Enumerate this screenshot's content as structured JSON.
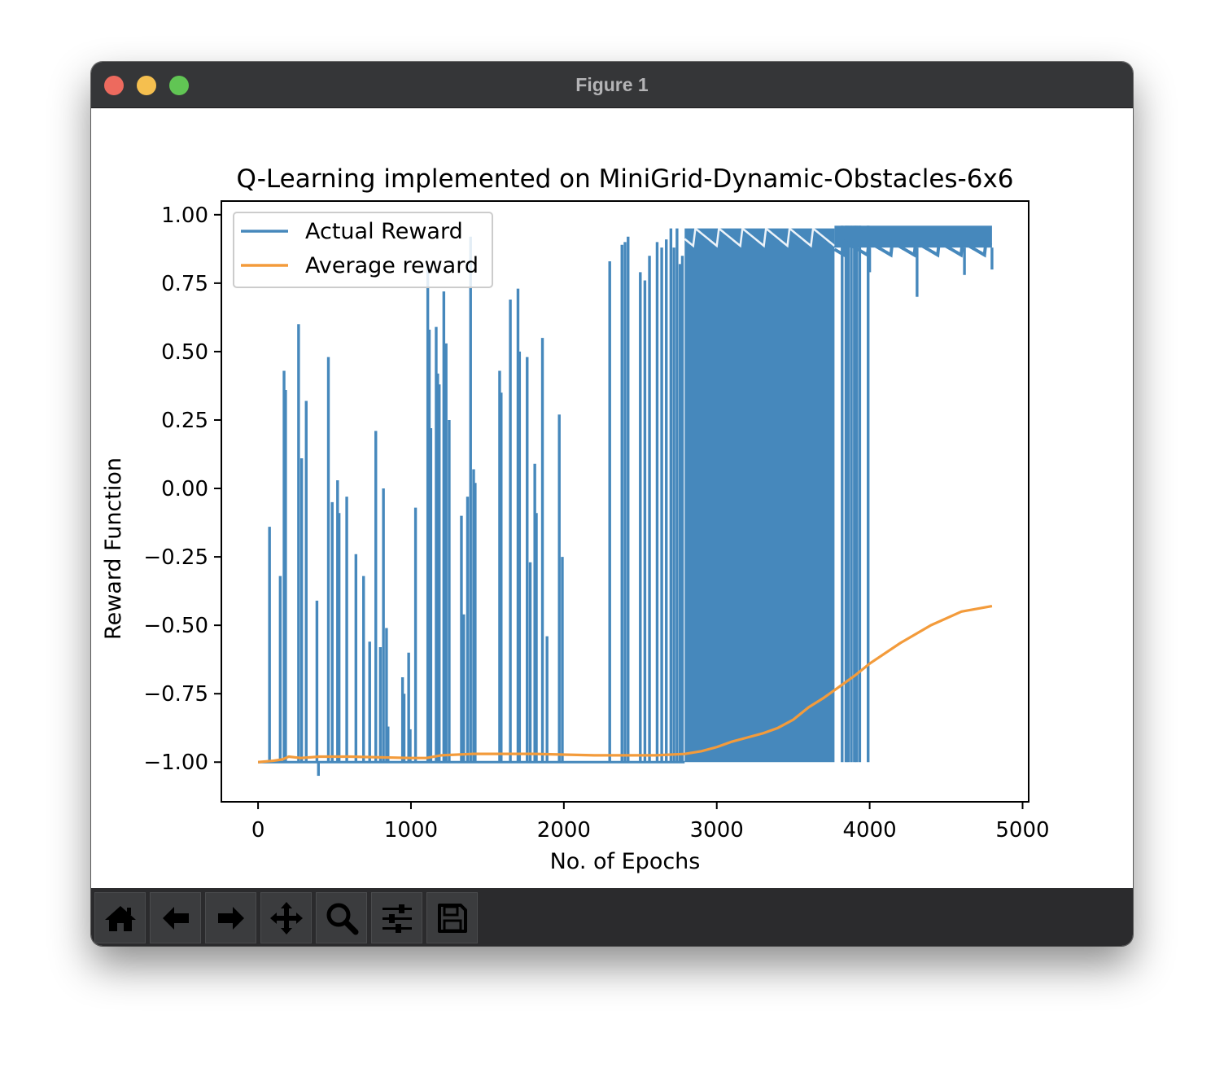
{
  "window": {
    "title": "Figure 1"
  },
  "toolbar": {
    "tools": [
      {
        "name": "home-icon",
        "label": "Home"
      },
      {
        "name": "back-icon",
        "label": "Back"
      },
      {
        "name": "forward-icon",
        "label": "Forward"
      },
      {
        "name": "pan-icon",
        "label": "Pan"
      },
      {
        "name": "zoom-icon",
        "label": "Zoom"
      },
      {
        "name": "configure-subplots-icon",
        "label": "Configure subplots"
      },
      {
        "name": "save-icon",
        "label": "Save"
      }
    ]
  },
  "chart_data": {
    "type": "line",
    "title": "Q-Learning implemented on MiniGrid-Dynamic-Obstacles-6x6",
    "xlabel": "No. of Epochs",
    "ylabel": "Reward Function",
    "xlim": [
      -240,
      5040
    ],
    "ylim": [
      -1.145,
      1.05
    ],
    "xticks": [
      0,
      1000,
      2000,
      3000,
      4000,
      5000
    ],
    "xtick_labels": [
      "0",
      "1000",
      "2000",
      "3000",
      "4000",
      "5000"
    ],
    "yticks": [
      1.0,
      0.75,
      0.5,
      0.25,
      0.0,
      -0.25,
      -0.5,
      -0.75,
      -1.0
    ],
    "ytick_labels": [
      "1.00",
      "0.75",
      "0.50",
      "0.25",
      "0.00",
      "−0.25",
      "−0.50",
      "−0.75",
      "−1.00"
    ],
    "grid": false,
    "legend_position": "top-left",
    "series": [
      {
        "name": "Actual Reward",
        "color": "#4688bc",
        "spikes": [
          [
            75,
            -0.14
          ],
          [
            145,
            -0.32
          ],
          [
            170,
            0.43
          ],
          [
            180,
            0.36
          ],
          [
            265,
            0.6
          ],
          [
            285,
            0.11
          ],
          [
            315,
            0.32
          ],
          [
            385,
            -0.41
          ],
          [
            395,
            -1.05
          ],
          [
            460,
            0.48
          ],
          [
            485,
            -0.05
          ],
          [
            520,
            0.03
          ],
          [
            530,
            -0.09
          ],
          [
            580,
            -0.03
          ],
          [
            640,
            -0.24
          ],
          [
            690,
            -0.32
          ],
          [
            730,
            -0.56
          ],
          [
            770,
            0.21
          ],
          [
            800,
            -0.58
          ],
          [
            820,
            0.0
          ],
          [
            840,
            -0.51
          ],
          [
            850,
            -0.87
          ],
          [
            945,
            -0.69
          ],
          [
            955,
            -0.75
          ],
          [
            985,
            -0.6
          ],
          [
            995,
            -0.88
          ],
          [
            1030,
            -0.07
          ],
          [
            1110,
            0.82
          ],
          [
            1120,
            0.58
          ],
          [
            1130,
            0.22
          ],
          [
            1165,
            0.59
          ],
          [
            1175,
            0.42
          ],
          [
            1185,
            0.38
          ],
          [
            1215,
            0.72
          ],
          [
            1230,
            0.53
          ],
          [
            1250,
            0.25
          ],
          [
            1330,
            -0.1
          ],
          [
            1345,
            -0.46
          ],
          [
            1370,
            -0.03
          ],
          [
            1390,
            0.92
          ],
          [
            1410,
            0.07
          ],
          [
            1420,
            0.02
          ],
          [
            1580,
            0.43
          ],
          [
            1590,
            0.35
          ],
          [
            1650,
            0.69
          ],
          [
            1700,
            0.73
          ],
          [
            1710,
            0.5
          ],
          [
            1760,
            0.48
          ],
          [
            1780,
            -0.27
          ],
          [
            1810,
            0.09
          ],
          [
            1820,
            -0.09
          ],
          [
            1860,
            0.55
          ],
          [
            1890,
            -0.54
          ],
          [
            1970,
            0.27
          ],
          [
            1990,
            -0.25
          ],
          [
            2300,
            0.83
          ],
          [
            2380,
            0.89
          ],
          [
            2400,
            0.9
          ],
          [
            2420,
            0.92
          ],
          [
            2500,
            0.79
          ],
          [
            2530,
            0.76
          ],
          [
            2560,
            0.85
          ],
          [
            2610,
            0.9
          ],
          [
            2640,
            0.88
          ],
          [
            2670,
            0.91
          ],
          [
            2700,
            0.95
          ],
          [
            2720,
            0.88
          ],
          [
            2740,
            0.95
          ],
          [
            2760,
            0.82
          ],
          [
            2775,
            0.85
          ]
        ],
        "dense_band": {
          "x_start": 2790,
          "x_end": 3770,
          "top": 0.95,
          "bottom": -1.0
        },
        "late_drops": [
          3820,
          3845,
          3860,
          3880,
          3900,
          3915,
          3935,
          3990
        ],
        "converged_region": {
          "x_start": 3770,
          "x_end": 4800,
          "top": 0.96,
          "typical_low": 0.84,
          "min_dips": [
            [
              4000,
              0.79
            ],
            [
              4310,
              0.7
            ],
            [
              4620,
              0.78
            ],
            [
              4800,
              0.8
            ]
          ]
        },
        "baseline": -1.0
      },
      {
        "name": "Average reward",
        "color": "#f39b3b",
        "x": [
          0,
          100,
          160,
          200,
          280,
          400,
          600,
          1000,
          1100,
          1200,
          1400,
          1800,
          2200,
          2600,
          2790,
          2900,
          3000,
          3100,
          3200,
          3300,
          3400,
          3500,
          3600,
          3700,
          3800,
          3900,
          4000,
          4200,
          4400,
          4600,
          4800
        ],
        "y": [
          -1.0,
          -0.995,
          -0.99,
          -0.98,
          -0.985,
          -0.98,
          -0.98,
          -0.985,
          -0.985,
          -0.975,
          -0.97,
          -0.97,
          -0.975,
          -0.975,
          -0.97,
          -0.96,
          -0.945,
          -0.925,
          -0.91,
          -0.895,
          -0.875,
          -0.845,
          -0.8,
          -0.765,
          -0.725,
          -0.685,
          -0.64,
          -0.565,
          -0.5,
          -0.45,
          -0.43
        ]
      }
    ]
  }
}
